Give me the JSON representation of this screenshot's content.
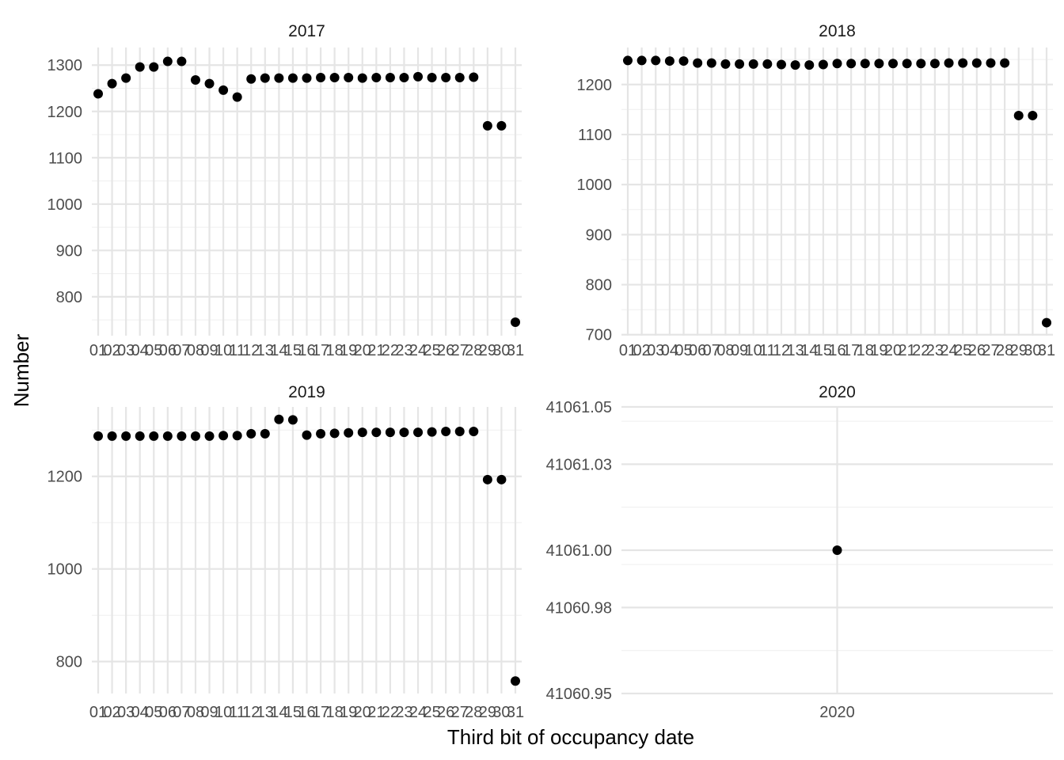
{
  "chart_data": {
    "type": "scatter",
    "xlabel": "Third bit of occupancy date",
    "ylabel": "Number",
    "grid": true,
    "point_color": "#000000",
    "panels": [
      {
        "title": "2017",
        "x": [
          "01",
          "02",
          "03",
          "04",
          "05",
          "06",
          "07",
          "08",
          "09",
          "10",
          "11",
          "12",
          "13",
          "14",
          "15",
          "16",
          "17",
          "18",
          "19",
          "20",
          "21",
          "22",
          "23",
          "24",
          "25",
          "26",
          "27",
          "28",
          "29",
          "30",
          "31"
        ],
        "values": [
          1238,
          1260,
          1272,
          1296,
          1296,
          1308,
          1308,
          1268,
          1260,
          1246,
          1231,
          1270,
          1272,
          1272,
          1272,
          1272,
          1273,
          1273,
          1273,
          1272,
          1273,
          1273,
          1273,
          1275,
          1273,
          1273,
          1273,
          1274,
          1169,
          1169,
          745
        ],
        "yticks": [
          800,
          900,
          1000,
          1100,
          1200,
          1300
        ],
        "ylim": [
          716,
          1338
        ]
      },
      {
        "title": "2018",
        "x": [
          "01",
          "02",
          "03",
          "04",
          "05",
          "06",
          "07",
          "08",
          "09",
          "10",
          "11",
          "12",
          "13",
          "14",
          "15",
          "16",
          "17",
          "18",
          "19",
          "20",
          "21",
          "22",
          "23",
          "24",
          "25",
          "26",
          "27",
          "28",
          "29",
          "30",
          "31"
        ],
        "values": [
          1248,
          1248,
          1248,
          1247,
          1247,
          1243,
          1243,
          1241,
          1241,
          1241,
          1241,
          1240,
          1239,
          1239,
          1240,
          1242,
          1242,
          1242,
          1242,
          1242,
          1242,
          1242,
          1242,
          1243,
          1243,
          1243,
          1243,
          1243,
          1138,
          1138,
          724
        ],
        "yticks": [
          700,
          800,
          900,
          1000,
          1100,
          1200
        ],
        "ylim": [
          698,
          1274
        ]
      },
      {
        "title": "2019",
        "x": [
          "01",
          "02",
          "03",
          "04",
          "05",
          "06",
          "07",
          "08",
          "09",
          "10",
          "11",
          "12",
          "13",
          "14",
          "15",
          "16",
          "17",
          "18",
          "19",
          "20",
          "21",
          "22",
          "23",
          "24",
          "25",
          "26",
          "27",
          "28",
          "29",
          "30",
          "31"
        ],
        "values": [
          1287,
          1287,
          1287,
          1287,
          1287,
          1287,
          1287,
          1287,
          1287,
          1288,
          1288,
          1292,
          1292,
          1323,
          1322,
          1289,
          1292,
          1293,
          1294,
          1295,
          1295,
          1295,
          1295,
          1295,
          1296,
          1297,
          1297,
          1297,
          1193,
          1193,
          758
        ],
        "yticks": [
          800,
          1000,
          1200
        ],
        "ylim": [
          731,
          1350
        ]
      },
      {
        "title": "2020",
        "x": [
          "2020"
        ],
        "values": [
          41061
        ],
        "yticks": [
          "41060.95",
          "41060.98",
          "41061.00",
          "41061.03",
          "41061.05"
        ],
        "ylim": [
          41060.95,
          41061.05
        ]
      }
    ]
  }
}
